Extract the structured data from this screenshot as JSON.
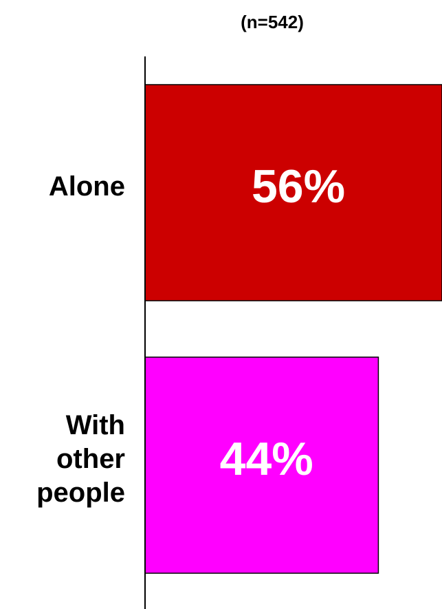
{
  "chart_data": {
    "type": "bar",
    "orientation": "horizontal",
    "subtitle": "(n=542)",
    "categories": [
      "Alone",
      "With other people"
    ],
    "category_label_lines": [
      [
        "Alone"
      ],
      [
        "With",
        "other",
        "people"
      ]
    ],
    "values": [
      56,
      44
    ],
    "data_labels": [
      "56%",
      "44%"
    ],
    "value_unit": "%",
    "xlim": [
      0,
      56
    ],
    "grid": false,
    "legend": "none",
    "colors": [
      "#cc0000",
      "#ff00ff"
    ]
  }
}
